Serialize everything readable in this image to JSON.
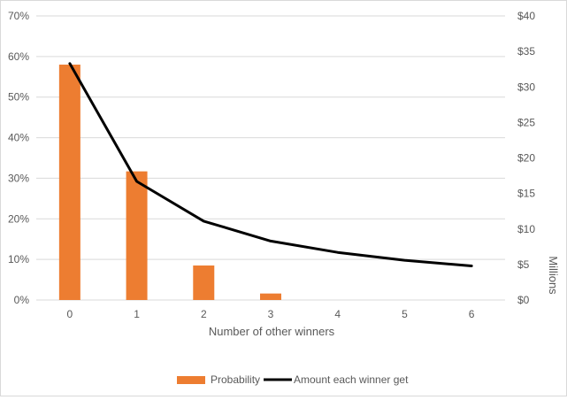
{
  "chart_data": {
    "type": "bar",
    "categories": [
      "0",
      "1",
      "2",
      "3",
      "4",
      "5",
      "6"
    ],
    "series": [
      {
        "name": "Probability",
        "type": "bar",
        "axis": "left",
        "color": "#ed7d31",
        "values": [
          0.58,
          0.317,
          0.085,
          0.016,
          0,
          0,
          0
        ]
      },
      {
        "name": "Amount each winner get",
        "type": "line",
        "axis": "right",
        "color": "#000000",
        "values": [
          33.3,
          16.7,
          11.1,
          8.3,
          6.7,
          5.6,
          4.8
        ]
      }
    ],
    "xlabel": "Number of other winners",
    "ylabel_right": "Millions",
    "y_left": {
      "ylim": [
        0,
        0.7
      ],
      "ticks": [
        0,
        0.1,
        0.2,
        0.3,
        0.4,
        0.5,
        0.6,
        0.7
      ],
      "tick_labels": [
        "0%",
        "10%",
        "20%",
        "30%",
        "40%",
        "50%",
        "60%",
        "70%"
      ]
    },
    "y_right": {
      "ylim": [
        0,
        40
      ],
      "ticks": [
        0,
        5,
        10,
        15,
        20,
        25,
        30,
        35,
        40
      ],
      "tick_labels": [
        "$0",
        "$5",
        "$10",
        "$15",
        "$20",
        "$25",
        "$30",
        "$35",
        "$40"
      ]
    },
    "grid": true,
    "legend": "bottom"
  }
}
